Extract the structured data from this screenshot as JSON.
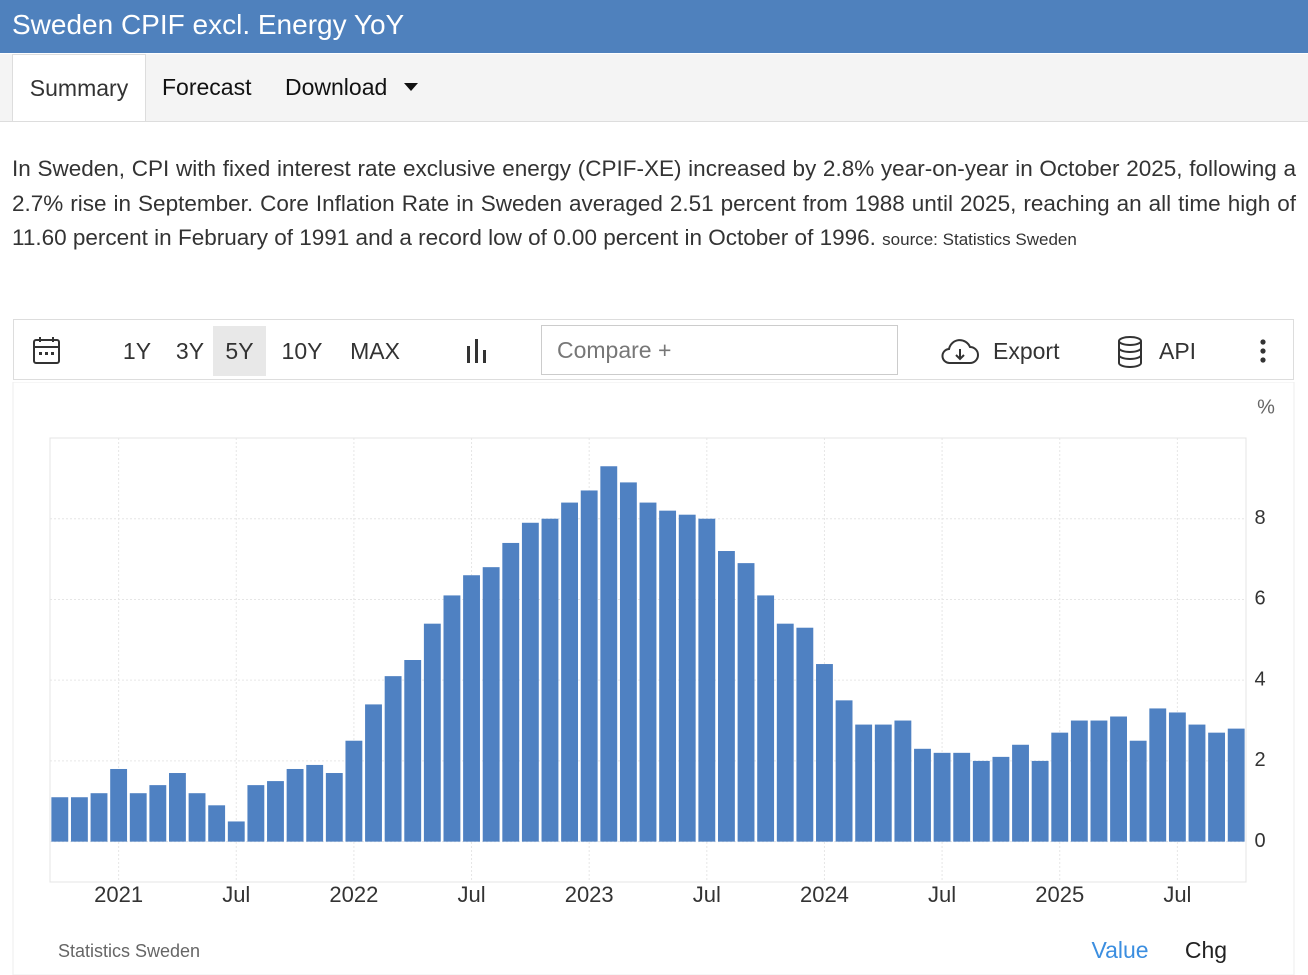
{
  "header": {
    "title": "Sweden CPIF excl. Energy YoY"
  },
  "tabs": [
    "Summary",
    "Forecast",
    "Download"
  ],
  "description": "In Sweden, CPI with fixed interest rate exclusive energy (CPIF-XE) increased by 2.8% year-on-year in October 2025, following a 2.7% rise in September. Core Inflation Rate in Sweden averaged 2.51 percent from 1988 until 2025, reaching an all time high of 11.60 percent in February of 1991 and a record low of 0.00 percent in October of 1996.",
  "source": "source: Statistics Sweden",
  "toolbar": {
    "ranges": [
      "1Y",
      "3Y",
      "5Y",
      "10Y",
      "MAX"
    ],
    "active_range": 2,
    "compare": "Compare +",
    "export": "Export",
    "api": "API"
  },
  "chart_data": {
    "type": "bar",
    "unit": "%",
    "categories": [
      null,
      null,
      null,
      "2021",
      null,
      null,
      null,
      null,
      null,
      "Jul",
      null,
      null,
      null,
      null,
      null,
      "2022",
      null,
      null,
      null,
      null,
      null,
      "Jul",
      null,
      null,
      null,
      null,
      null,
      "2023",
      null,
      null,
      null,
      null,
      null,
      "Jul",
      null,
      null,
      null,
      null,
      null,
      "2024",
      null,
      null,
      null,
      null,
      null,
      "Jul",
      null,
      null,
      null,
      null,
      null,
      "2025",
      null,
      null,
      null,
      null,
      null,
      "Jul",
      null,
      null,
      null
    ],
    "values": [
      1.1,
      1.1,
      1.2,
      1.8,
      1.2,
      1.4,
      1.7,
      1.2,
      0.9,
      0.5,
      1.4,
      1.5,
      1.8,
      1.9,
      1.7,
      2.5,
      3.4,
      4.1,
      4.5,
      5.4,
      6.1,
      6.6,
      6.8,
      7.4,
      7.9,
      8.0,
      8.4,
      8.7,
      9.3,
      8.9,
      8.4,
      8.2,
      8.1,
      8.0,
      7.2,
      6.9,
      6.1,
      5.4,
      5.3,
      4.4,
      3.5,
      2.9,
      2.9,
      3.0,
      2.3,
      2.2,
      2.2,
      2.0,
      2.1,
      2.4,
      2.0,
      2.7,
      3.0,
      3.0,
      3.1,
      2.5,
      3.3,
      3.2,
      2.9,
      2.7,
      2.8
    ],
    "color": "#4f81c2",
    "ylim": [
      -1,
      10
    ],
    "yticks": [
      0,
      2,
      4,
      6,
      8
    ],
    "grid": true
  },
  "footer": {
    "source": "Statistics Sweden",
    "tabs": [
      "Value",
      "Chg"
    ]
  }
}
